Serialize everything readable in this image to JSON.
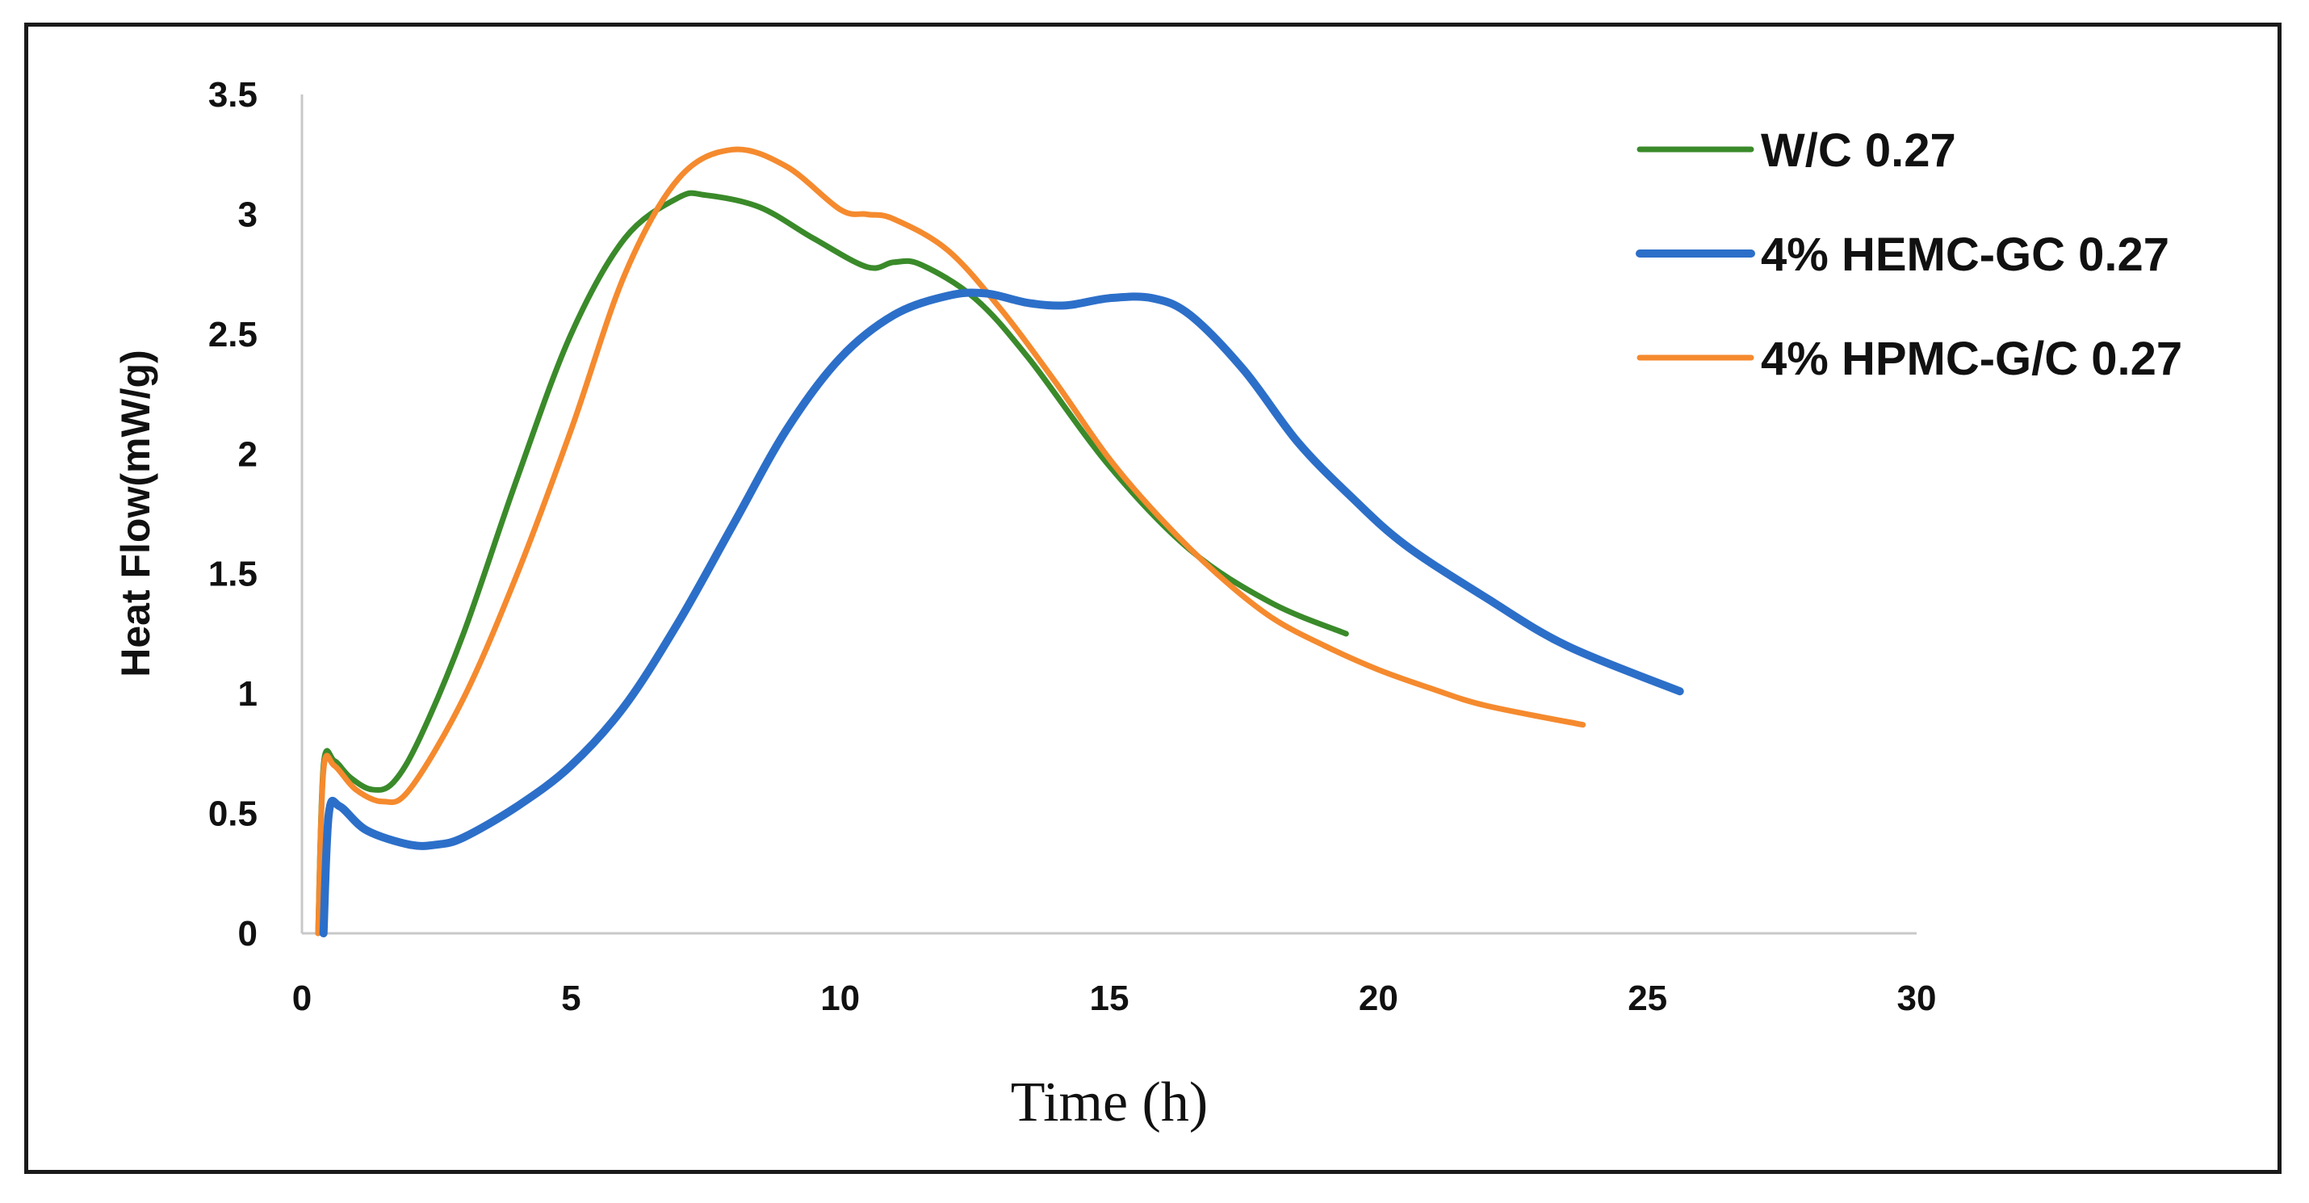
{
  "chart_data": {
    "type": "line",
    "title": "",
    "xlabel": "Time (h)",
    "ylabel": "Heat Flow(mW/g)",
    "xlim": [
      0,
      30
    ],
    "ylim": [
      0,
      3.5
    ],
    "xticks": [
      "0",
      "5",
      "10",
      "15",
      "20",
      "25",
      "30"
    ],
    "yticks": [
      "0",
      "0.5",
      "1",
      "1.5",
      "2",
      "2.5",
      "3",
      "3.5"
    ],
    "grid": false,
    "legend_position": "top-right",
    "series": [
      {
        "name": "W/C 0.27",
        "color": "#3a8a2a",
        "x": [
          0.3,
          0.4,
          0.6,
          0.9,
          1.3,
          1.7,
          2.2,
          3,
          4,
          5,
          6,
          7,
          7.5,
          8.5,
          9.5,
          10.5,
          11,
          11.5,
          12.5,
          13.5,
          15,
          16.5,
          18,
          19.4
        ],
        "y": [
          0,
          0.7,
          0.72,
          0.65,
          0.6,
          0.63,
          0.82,
          1.25,
          1.9,
          2.5,
          2.9,
          3.07,
          3.08,
          3.03,
          2.9,
          2.78,
          2.8,
          2.79,
          2.65,
          2.4,
          1.95,
          1.6,
          1.38,
          1.25
        ]
      },
      {
        "name": "4% HEMC-GC 0.27",
        "color": "#2c6fc9",
        "x": [
          0.4,
          0.5,
          0.7,
          1.2,
          2,
          2.5,
          3,
          4,
          5,
          6,
          7,
          8,
          9,
          10,
          11,
          12,
          12.7,
          13.5,
          14.2,
          15,
          15.8,
          16.5,
          17.5,
          18.5,
          19.5,
          20.5,
          22,
          23.5,
          25.6
        ],
        "y": [
          0,
          0.5,
          0.53,
          0.43,
          0.37,
          0.37,
          0.4,
          0.53,
          0.7,
          0.95,
          1.3,
          1.7,
          2.1,
          2.4,
          2.58,
          2.66,
          2.67,
          2.63,
          2.62,
          2.65,
          2.65,
          2.58,
          2.35,
          2.05,
          1.82,
          1.62,
          1.4,
          1.2,
          1.01
        ]
      },
      {
        "name": "4% HPMC-G/C 0.27",
        "color": "#f58a2e",
        "x": [
          0.3,
          0.4,
          0.6,
          1,
          1.5,
          2,
          3,
          4,
          5,
          6,
          7,
          8,
          9,
          10,
          10.5,
          11,
          12,
          13,
          14,
          15,
          16,
          17,
          18,
          19,
          20,
          21,
          22,
          23.8
        ],
        "y": [
          0,
          0.68,
          0.7,
          0.6,
          0.55,
          0.6,
          0.98,
          1.5,
          2.1,
          2.75,
          3.15,
          3.27,
          3.2,
          3.02,
          3.0,
          2.98,
          2.85,
          2.6,
          2.3,
          1.98,
          1.72,
          1.5,
          1.32,
          1.2,
          1.1,
          1.02,
          0.95,
          0.87
        ]
      }
    ]
  }
}
